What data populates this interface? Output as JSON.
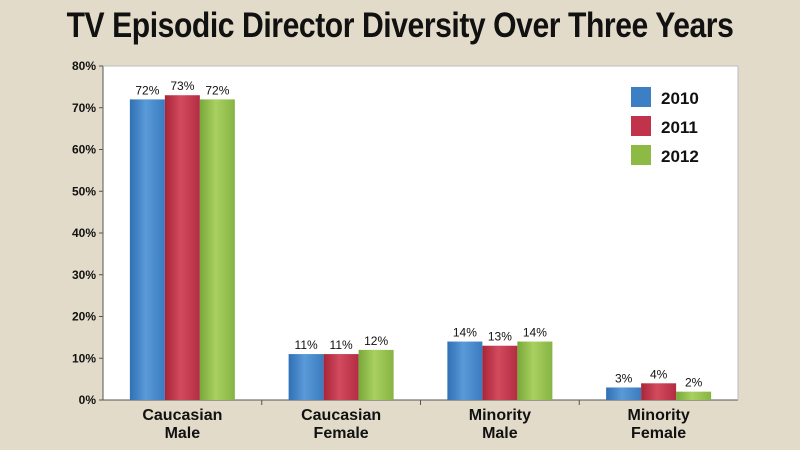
{
  "chart_data": {
    "type": "bar",
    "title": "TV Episodic Director Diversity Over Three Years",
    "xlabel": "",
    "ylabel": "",
    "categories": [
      "Caucasian Male",
      "Caucasian Female",
      "Minority Male",
      "Minority Female"
    ],
    "series": [
      {
        "name": "2010",
        "color": "#3d7fc4",
        "values": [
          72,
          11,
          14,
          3
        ],
        "labels": [
          "72%",
          "11%",
          "14%",
          "3%"
        ]
      },
      {
        "name": "2011",
        "color": "#c0334a",
        "values": [
          73,
          11,
          13,
          4
        ],
        "labels": [
          "73%",
          "11%",
          "13%",
          "4%"
        ]
      },
      {
        "name": "2012",
        "color": "#8cba45",
        "values": [
          72,
          12,
          14,
          2
        ],
        "labels": [
          "72%",
          "12%",
          "14%",
          "2%"
        ]
      }
    ],
    "ylim": [
      0,
      80
    ],
    "yticks": [
      0,
      10,
      20,
      30,
      40,
      50,
      60,
      70,
      80
    ],
    "ytick_labels": [
      "0%",
      "10%",
      "20%",
      "30%",
      "40%",
      "50%",
      "60%",
      "70%",
      "80%"
    ],
    "grid": false,
    "legend_position": "top-right"
  }
}
